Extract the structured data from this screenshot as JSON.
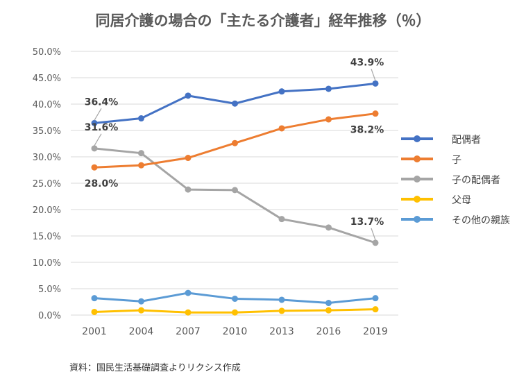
{
  "chart_data": {
    "type": "line",
    "title": "同居介護の場合の「主たる介護者」経年推移（％）",
    "xlabel": "",
    "ylabel": "",
    "categories": [
      "2001",
      "2004",
      "2007",
      "2010",
      "2013",
      "2016",
      "2019"
    ],
    "ylim": [
      0,
      50
    ],
    "yticks": [
      0,
      5,
      10,
      15,
      20,
      25,
      30,
      35,
      40,
      45,
      50
    ],
    "ytick_labels": [
      "0.0%",
      "5.0%",
      "10.0%",
      "15.0%",
      "20.0%",
      "25.0%",
      "30.0%",
      "35.0%",
      "40.0%",
      "45.0%",
      "50.0%"
    ],
    "grid": true,
    "legend_position": "right",
    "series": [
      {
        "name": "配偶者",
        "color": "#4472C4",
        "values": [
          36.4,
          37.3,
          41.6,
          40.1,
          42.4,
          42.9,
          43.9
        ]
      },
      {
        "name": "子",
        "color": "#ED7D31",
        "values": [
          28.0,
          28.4,
          29.8,
          32.6,
          35.4,
          37.1,
          38.2
        ]
      },
      {
        "name": "子の配偶者",
        "color": "#A5A5A5",
        "values": [
          31.6,
          30.7,
          23.8,
          23.7,
          18.2,
          16.6,
          13.7
        ]
      },
      {
        "name": "父母",
        "color": "#FFC000",
        "values": [
          0.6,
          0.9,
          0.5,
          0.5,
          0.8,
          0.9,
          1.1
        ]
      },
      {
        "name": "その他の親族",
        "color": "#5B9BD5",
        "values": [
          3.2,
          2.6,
          4.2,
          3.1,
          2.9,
          2.3,
          3.2
        ]
      }
    ],
    "annotations": [
      {
        "text": "36.4%",
        "series": 0,
        "index": 0,
        "placement": "above"
      },
      {
        "text": "43.9%",
        "series": 0,
        "index": 6,
        "placement": "above"
      },
      {
        "text": "28.0%",
        "series": 1,
        "index": 0,
        "placement": "below"
      },
      {
        "text": "38.2%",
        "series": 1,
        "index": 6,
        "placement": "below"
      },
      {
        "text": "31.6%",
        "series": 2,
        "index": 0,
        "placement": "above"
      },
      {
        "text": "13.7%",
        "series": 2,
        "index": 6,
        "placement": "above"
      }
    ]
  },
  "source": "資料：国民生活基礎調査よりリクシス作成"
}
